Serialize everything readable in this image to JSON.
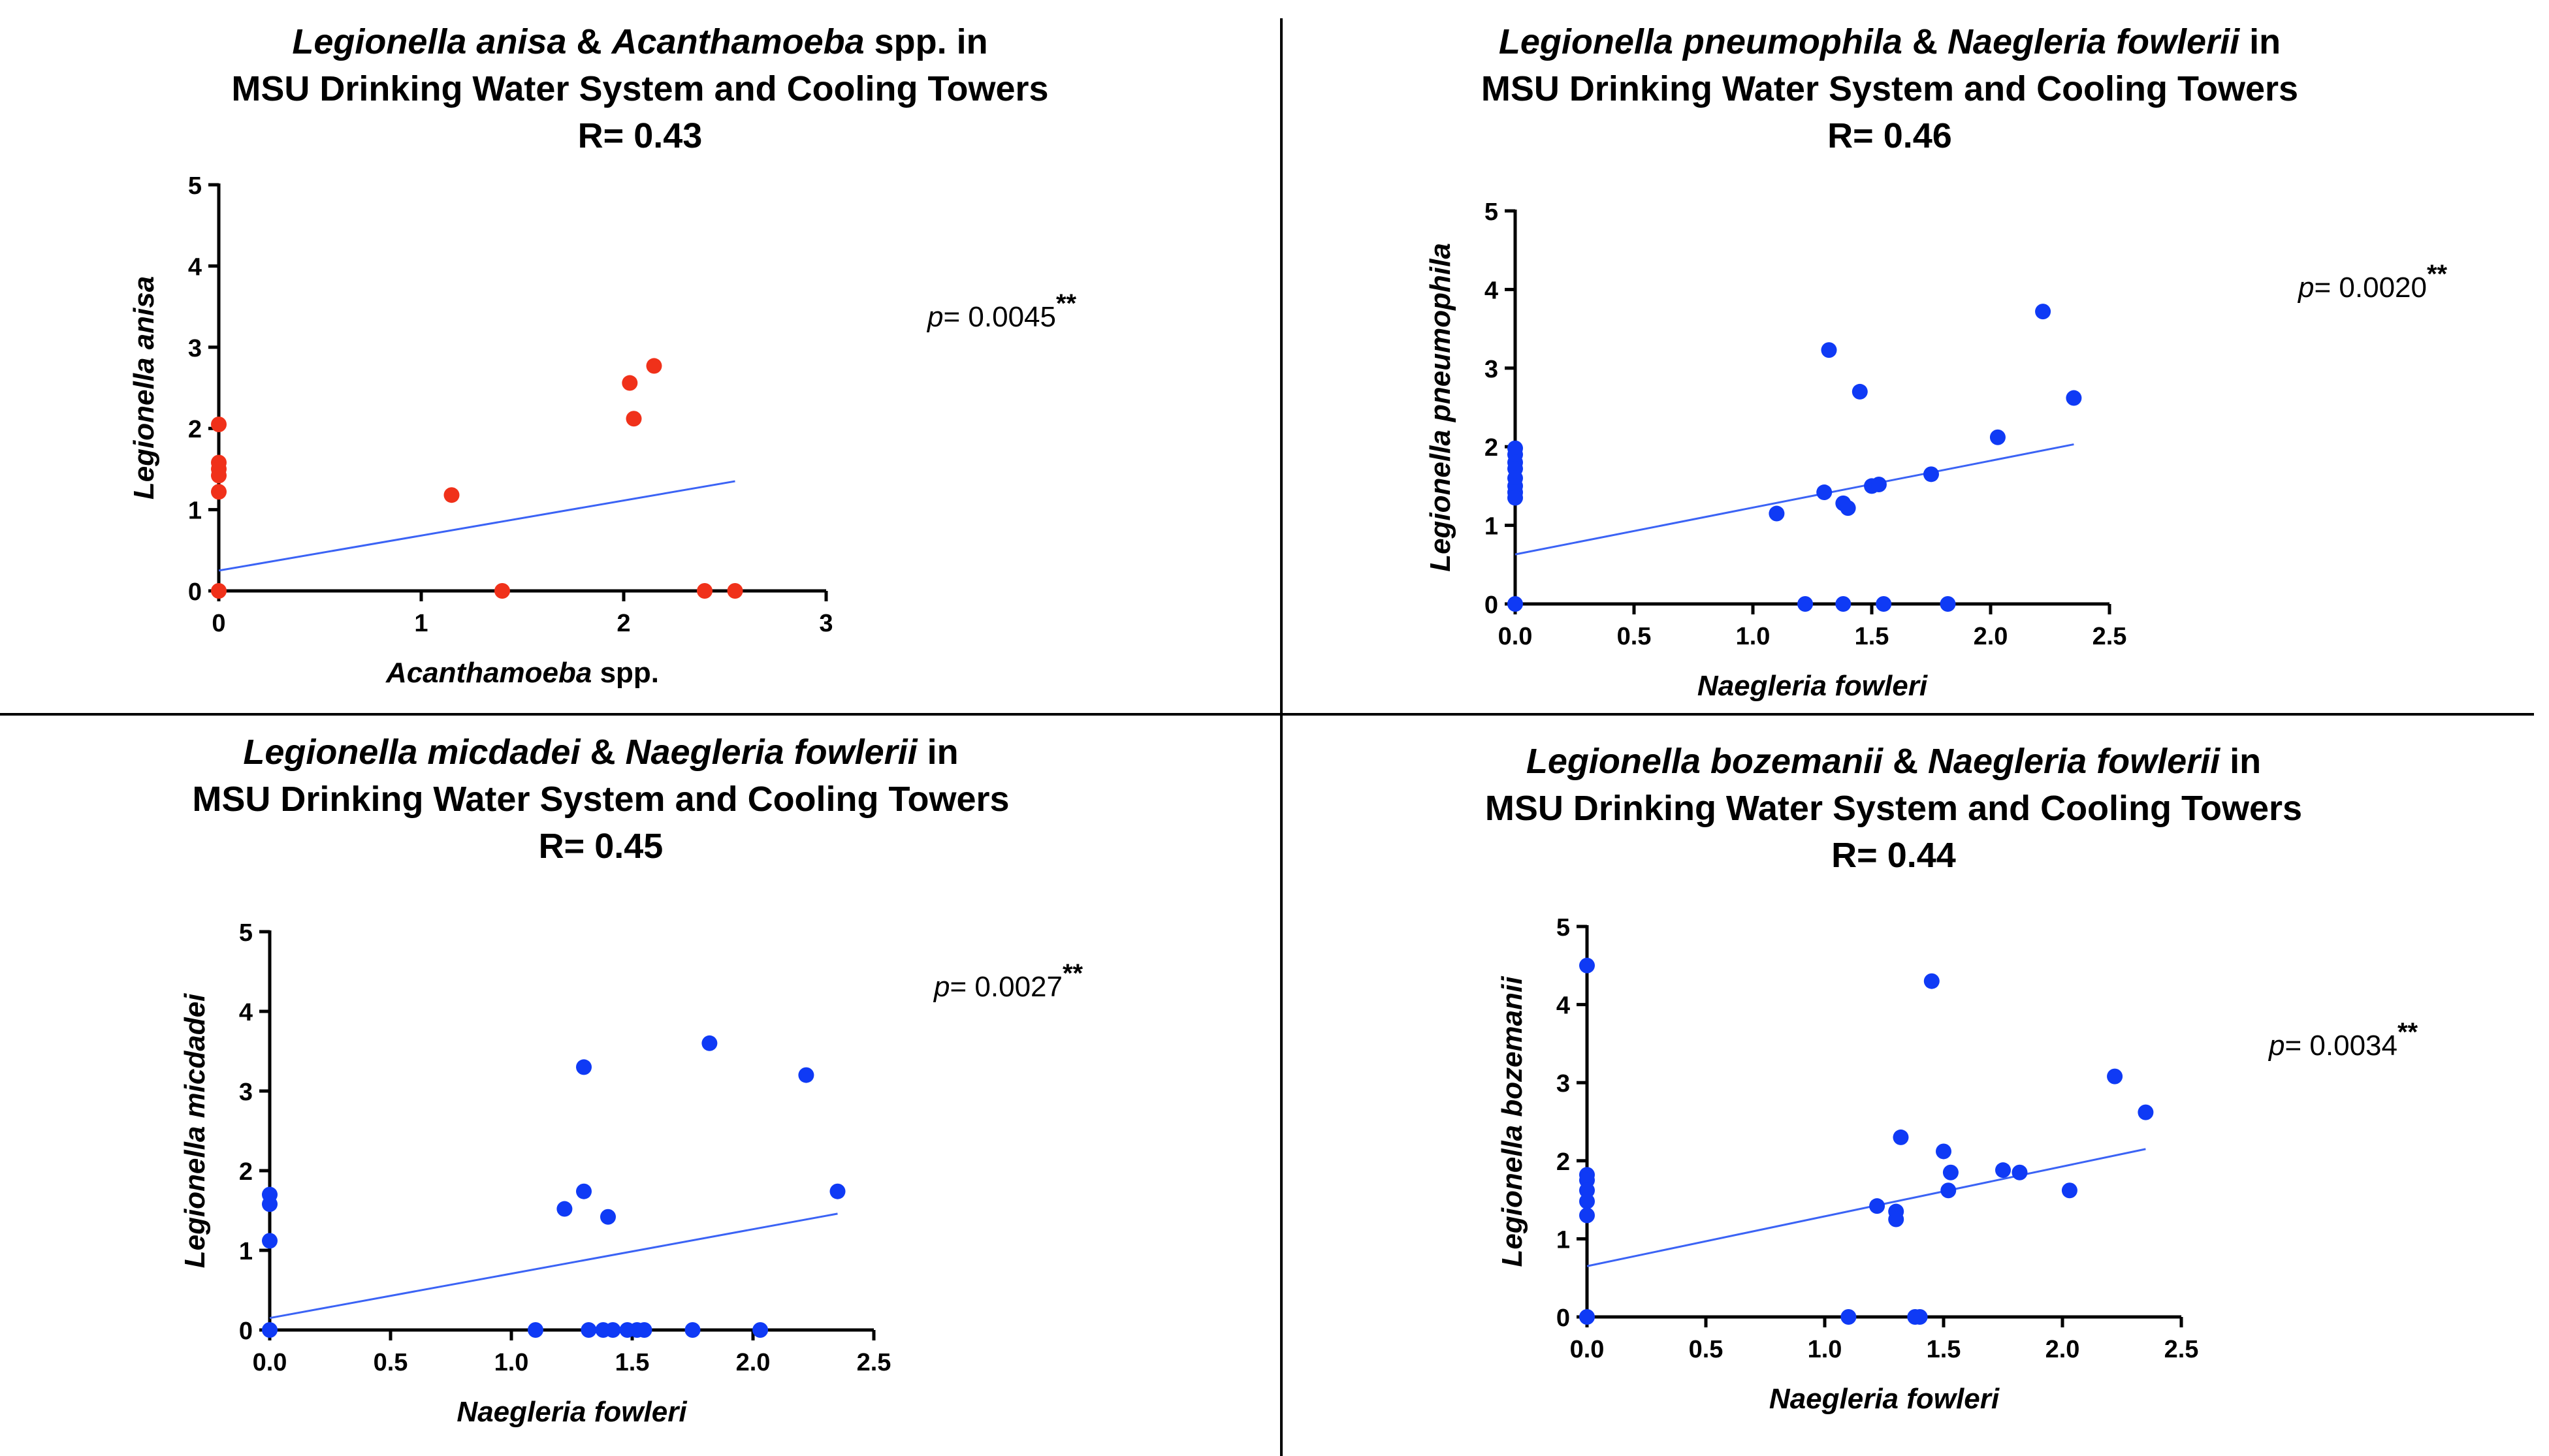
{
  "colors": {
    "axis": "#000000",
    "line": "#3b63f5",
    "red": "#f0311a",
    "blue": "#0f3af5"
  },
  "chart_data": [
    {
      "type": "scatter",
      "title": {
        "line1": {
          "italic1": "Legionella anisa",
          "amp": " & ",
          "italic2": "Acanthamoeba",
          "rest": " spp. in"
        },
        "line2": "MSU Drinking Water System and Cooling Towers",
        "line3": "R= 0.43"
      },
      "xlabel": {
        "italic": "Acanthamoeba",
        "rest": " spp."
      },
      "ylabel": "Legionella anisa",
      "p_value": {
        "label": "p",
        "value": "= 0.0045",
        "stars": "**"
      },
      "xlim": [
        0,
        3
      ],
      "ylim": [
        0,
        5
      ],
      "xticks": [
        0,
        1,
        2,
        3
      ],
      "xtick_labels": [
        "0",
        "1",
        "2",
        "3"
      ],
      "yticks": [
        0,
        1,
        2,
        3,
        4,
        5
      ],
      "ytick_labels": [
        "0",
        "1",
        "2",
        "3",
        "4",
        "5"
      ],
      "marker_color": "#f0311a",
      "points": [
        [
          0,
          2.05
        ],
        [
          0,
          1.58
        ],
        [
          0,
          1.5
        ],
        [
          0,
          1.42
        ],
        [
          0,
          1.22
        ],
        [
          0,
          0
        ],
        [
          1.15,
          1.18
        ],
        [
          1.4,
          0
        ],
        [
          2.03,
          2.56
        ],
        [
          2.05,
          2.12
        ],
        [
          2.15,
          2.77
        ],
        [
          2.4,
          0
        ],
        [
          2.55,
          0
        ]
      ],
      "fit": [
        [
          0,
          0.25
        ],
        [
          2.55,
          1.35
        ]
      ]
    },
    {
      "type": "scatter",
      "title": {
        "line1": {
          "italic1": "Legionella pneumophila",
          "amp": " & ",
          "italic2": "Naegleria fowlerii",
          "rest": " in"
        },
        "line2": "MSU Drinking Water System and Cooling Towers",
        "line3": "R= 0.46"
      },
      "xlabel": {
        "italic": "Naegleria fowleri",
        "rest": ""
      },
      "ylabel": "Legionella pneumophila",
      "p_value": {
        "label": "p",
        "value": "= 0.0020",
        "stars": "**"
      },
      "xlim": [
        0,
        2.5
      ],
      "ylim": [
        0,
        5
      ],
      "xticks": [
        0,
        0.5,
        1,
        1.5,
        2,
        2.5
      ],
      "xtick_labels": [
        "0.0",
        "0.5",
        "1.0",
        "1.5",
        "2.0",
        "2.5"
      ],
      "yticks": [
        0,
        1,
        2,
        3,
        4,
        5
      ],
      "ytick_labels": [
        "0",
        "1",
        "2",
        "3",
        "4",
        "5"
      ],
      "marker_color": "#0f3af5",
      "points": [
        [
          0,
          1.98
        ],
        [
          0,
          1.9
        ],
        [
          0,
          1.8
        ],
        [
          0,
          1.72
        ],
        [
          0,
          1.6
        ],
        [
          0,
          1.5
        ],
        [
          0,
          1.42
        ],
        [
          0,
          1.35
        ],
        [
          0,
          0
        ],
        [
          1.1,
          1.15
        ],
        [
          1.22,
          0
        ],
        [
          1.3,
          1.42
        ],
        [
          1.32,
          3.23
        ],
        [
          1.38,
          1.28
        ],
        [
          1.4,
          1.22
        ],
        [
          1.38,
          0
        ],
        [
          1.45,
          2.7
        ],
        [
          1.5,
          1.5
        ],
        [
          1.53,
          1.52
        ],
        [
          1.55,
          0
        ],
        [
          1.75,
          1.65
        ],
        [
          1.82,
          0
        ],
        [
          2.03,
          2.12
        ],
        [
          2.22,
          3.72
        ],
        [
          2.35,
          2.62
        ]
      ],
      "fit": [
        [
          0,
          0.63
        ],
        [
          2.35,
          2.03
        ]
      ]
    },
    {
      "type": "scatter",
      "title": {
        "line1": {
          "italic1": "Legionella micdadei",
          "amp": " & ",
          "italic2": "Naegleria fowlerii",
          "rest": " in"
        },
        "line2": "MSU Drinking Water System and Cooling Towers",
        "line3": "R= 0.45"
      },
      "xlabel": {
        "italic": "Naegleria fowleri",
        "rest": ""
      },
      "ylabel": "Legionella micdadei",
      "p_value": {
        "label": "p",
        "value": "= 0.0027",
        "stars": "**"
      },
      "xlim": [
        0,
        2.5
      ],
      "ylim": [
        0,
        5
      ],
      "xticks": [
        0,
        0.5,
        1,
        1.5,
        2,
        2.5
      ],
      "xtick_labels": [
        "0.0",
        "0.5",
        "1.0",
        "1.5",
        "2.0",
        "2.5"
      ],
      "yticks": [
        0,
        1,
        2,
        3,
        4,
        5
      ],
      "ytick_labels": [
        "0",
        "1",
        "2",
        "3",
        "4",
        "5"
      ],
      "marker_color": "#0f3af5",
      "points": [
        [
          0,
          1.7
        ],
        [
          0,
          1.58
        ],
        [
          0,
          1.12
        ],
        [
          0,
          0
        ],
        [
          1.1,
          0
        ],
        [
          1.22,
          1.52
        ],
        [
          1.3,
          3.3
        ],
        [
          1.3,
          1.74
        ],
        [
          1.32,
          0
        ],
        [
          1.38,
          0
        ],
        [
          1.4,
          1.42
        ],
        [
          1.42,
          0
        ],
        [
          1.48,
          0
        ],
        [
          1.52,
          0
        ],
        [
          1.55,
          0
        ],
        [
          1.75,
          0
        ],
        [
          1.82,
          3.6
        ],
        [
          2.03,
          0
        ],
        [
          2.22,
          3.2
        ],
        [
          2.35,
          1.74
        ]
      ],
      "fit": [
        [
          0,
          0.15
        ],
        [
          2.35,
          1.46
        ]
      ]
    },
    {
      "type": "scatter",
      "title": {
        "line1": {
          "italic1": "Legionella bozemanii",
          "amp": " & ",
          "italic2": "Naegleria fowlerii",
          "rest": " in"
        },
        "line2": "MSU Drinking Water System and Cooling Towers",
        "line3": "R= 0.44"
      },
      "xlabel": {
        "italic": "Naegleria fowleri",
        "rest": ""
      },
      "ylabel": "Legionella bozemanii",
      "p_value": {
        "label": "p",
        "value": "= 0.0034",
        "stars": "**"
      },
      "xlim": [
        0,
        2.5
      ],
      "ylim": [
        0,
        5
      ],
      "xticks": [
        0,
        0.5,
        1,
        1.5,
        2,
        2.5
      ],
      "xtick_labels": [
        "0.0",
        "0.5",
        "1.0",
        "1.5",
        "2.0",
        "2.5"
      ],
      "yticks": [
        0,
        1,
        2,
        3,
        4,
        5
      ],
      "ytick_labels": [
        "0",
        "1",
        "2",
        "3",
        "4",
        "5"
      ],
      "marker_color": "#0f3af5",
      "points": [
        [
          0,
          4.5
        ],
        [
          0,
          1.82
        ],
        [
          0,
          1.75
        ],
        [
          0,
          1.62
        ],
        [
          0,
          1.48
        ],
        [
          0,
          1.3
        ],
        [
          0,
          0
        ],
        [
          1.1,
          0
        ],
        [
          1.22,
          1.42
        ],
        [
          1.3,
          1.35
        ],
        [
          1.3,
          1.25
        ],
        [
          1.32,
          2.3
        ],
        [
          1.38,
          0
        ],
        [
          1.4,
          0
        ],
        [
          1.45,
          4.3
        ],
        [
          1.5,
          2.12
        ],
        [
          1.52,
          1.62
        ],
        [
          1.53,
          1.85
        ],
        [
          1.75,
          1.88
        ],
        [
          1.82,
          1.85
        ],
        [
          2.03,
          1.62
        ],
        [
          2.22,
          3.08
        ],
        [
          2.35,
          2.62
        ]
      ],
      "fit": [
        [
          0,
          0.65
        ],
        [
          2.35,
          2.15
        ]
      ]
    }
  ]
}
